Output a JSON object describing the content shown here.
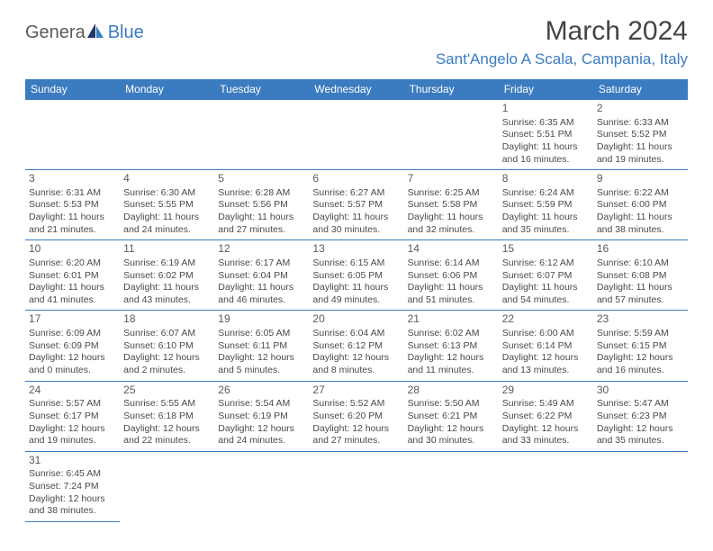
{
  "logo": {
    "part1": "Genera",
    "part2": "Blue"
  },
  "title": "March 2024",
  "location": "Sant'Angelo A Scala, Campania, Italy",
  "colors": {
    "header_bg": "#3b7bbf",
    "header_fg": "#ffffff",
    "accent": "#3b7bbf",
    "text": "#4a4a4a",
    "title": "#444444"
  },
  "weekdays": [
    "Sunday",
    "Monday",
    "Tuesday",
    "Wednesday",
    "Thursday",
    "Friday",
    "Saturday"
  ],
  "grid": [
    [
      null,
      null,
      null,
      null,
      null,
      {
        "n": "1",
        "sr": "Sunrise: 6:35 AM",
        "ss": "Sunset: 5:51 PM",
        "d1": "Daylight: 11 hours",
        "d2": "and 16 minutes."
      },
      {
        "n": "2",
        "sr": "Sunrise: 6:33 AM",
        "ss": "Sunset: 5:52 PM",
        "d1": "Daylight: 11 hours",
        "d2": "and 19 minutes."
      }
    ],
    [
      {
        "n": "3",
        "sr": "Sunrise: 6:31 AM",
        "ss": "Sunset: 5:53 PM",
        "d1": "Daylight: 11 hours",
        "d2": "and 21 minutes."
      },
      {
        "n": "4",
        "sr": "Sunrise: 6:30 AM",
        "ss": "Sunset: 5:55 PM",
        "d1": "Daylight: 11 hours",
        "d2": "and 24 minutes."
      },
      {
        "n": "5",
        "sr": "Sunrise: 6:28 AM",
        "ss": "Sunset: 5:56 PM",
        "d1": "Daylight: 11 hours",
        "d2": "and 27 minutes."
      },
      {
        "n": "6",
        "sr": "Sunrise: 6:27 AM",
        "ss": "Sunset: 5:57 PM",
        "d1": "Daylight: 11 hours",
        "d2": "and 30 minutes."
      },
      {
        "n": "7",
        "sr": "Sunrise: 6:25 AM",
        "ss": "Sunset: 5:58 PM",
        "d1": "Daylight: 11 hours",
        "d2": "and 32 minutes."
      },
      {
        "n": "8",
        "sr": "Sunrise: 6:24 AM",
        "ss": "Sunset: 5:59 PM",
        "d1": "Daylight: 11 hours",
        "d2": "and 35 minutes."
      },
      {
        "n": "9",
        "sr": "Sunrise: 6:22 AM",
        "ss": "Sunset: 6:00 PM",
        "d1": "Daylight: 11 hours",
        "d2": "and 38 minutes."
      }
    ],
    [
      {
        "n": "10",
        "sr": "Sunrise: 6:20 AM",
        "ss": "Sunset: 6:01 PM",
        "d1": "Daylight: 11 hours",
        "d2": "and 41 minutes."
      },
      {
        "n": "11",
        "sr": "Sunrise: 6:19 AM",
        "ss": "Sunset: 6:02 PM",
        "d1": "Daylight: 11 hours",
        "d2": "and 43 minutes."
      },
      {
        "n": "12",
        "sr": "Sunrise: 6:17 AM",
        "ss": "Sunset: 6:04 PM",
        "d1": "Daylight: 11 hours",
        "d2": "and 46 minutes."
      },
      {
        "n": "13",
        "sr": "Sunrise: 6:15 AM",
        "ss": "Sunset: 6:05 PM",
        "d1": "Daylight: 11 hours",
        "d2": "and 49 minutes."
      },
      {
        "n": "14",
        "sr": "Sunrise: 6:14 AM",
        "ss": "Sunset: 6:06 PM",
        "d1": "Daylight: 11 hours",
        "d2": "and 51 minutes."
      },
      {
        "n": "15",
        "sr": "Sunrise: 6:12 AM",
        "ss": "Sunset: 6:07 PM",
        "d1": "Daylight: 11 hours",
        "d2": "and 54 minutes."
      },
      {
        "n": "16",
        "sr": "Sunrise: 6:10 AM",
        "ss": "Sunset: 6:08 PM",
        "d1": "Daylight: 11 hours",
        "d2": "and 57 minutes."
      }
    ],
    [
      {
        "n": "17",
        "sr": "Sunrise: 6:09 AM",
        "ss": "Sunset: 6:09 PM",
        "d1": "Daylight: 12 hours",
        "d2": "and 0 minutes."
      },
      {
        "n": "18",
        "sr": "Sunrise: 6:07 AM",
        "ss": "Sunset: 6:10 PM",
        "d1": "Daylight: 12 hours",
        "d2": "and 2 minutes."
      },
      {
        "n": "19",
        "sr": "Sunrise: 6:05 AM",
        "ss": "Sunset: 6:11 PM",
        "d1": "Daylight: 12 hours",
        "d2": "and 5 minutes."
      },
      {
        "n": "20",
        "sr": "Sunrise: 6:04 AM",
        "ss": "Sunset: 6:12 PM",
        "d1": "Daylight: 12 hours",
        "d2": "and 8 minutes."
      },
      {
        "n": "21",
        "sr": "Sunrise: 6:02 AM",
        "ss": "Sunset: 6:13 PM",
        "d1": "Daylight: 12 hours",
        "d2": "and 11 minutes."
      },
      {
        "n": "22",
        "sr": "Sunrise: 6:00 AM",
        "ss": "Sunset: 6:14 PM",
        "d1": "Daylight: 12 hours",
        "d2": "and 13 minutes."
      },
      {
        "n": "23",
        "sr": "Sunrise: 5:59 AM",
        "ss": "Sunset: 6:15 PM",
        "d1": "Daylight: 12 hours",
        "d2": "and 16 minutes."
      }
    ],
    [
      {
        "n": "24",
        "sr": "Sunrise: 5:57 AM",
        "ss": "Sunset: 6:17 PM",
        "d1": "Daylight: 12 hours",
        "d2": "and 19 minutes."
      },
      {
        "n": "25",
        "sr": "Sunrise: 5:55 AM",
        "ss": "Sunset: 6:18 PM",
        "d1": "Daylight: 12 hours",
        "d2": "and 22 minutes."
      },
      {
        "n": "26",
        "sr": "Sunrise: 5:54 AM",
        "ss": "Sunset: 6:19 PM",
        "d1": "Daylight: 12 hours",
        "d2": "and 24 minutes."
      },
      {
        "n": "27",
        "sr": "Sunrise: 5:52 AM",
        "ss": "Sunset: 6:20 PM",
        "d1": "Daylight: 12 hours",
        "d2": "and 27 minutes."
      },
      {
        "n": "28",
        "sr": "Sunrise: 5:50 AM",
        "ss": "Sunset: 6:21 PM",
        "d1": "Daylight: 12 hours",
        "d2": "and 30 minutes."
      },
      {
        "n": "29",
        "sr": "Sunrise: 5:49 AM",
        "ss": "Sunset: 6:22 PM",
        "d1": "Daylight: 12 hours",
        "d2": "and 33 minutes."
      },
      {
        "n": "30",
        "sr": "Sunrise: 5:47 AM",
        "ss": "Sunset: 6:23 PM",
        "d1": "Daylight: 12 hours",
        "d2": "and 35 minutes."
      }
    ],
    [
      {
        "n": "31",
        "sr": "Sunrise: 6:45 AM",
        "ss": "Sunset: 7:24 PM",
        "d1": "Daylight: 12 hours",
        "d2": "and 38 minutes."
      },
      null,
      null,
      null,
      null,
      null,
      null
    ]
  ]
}
